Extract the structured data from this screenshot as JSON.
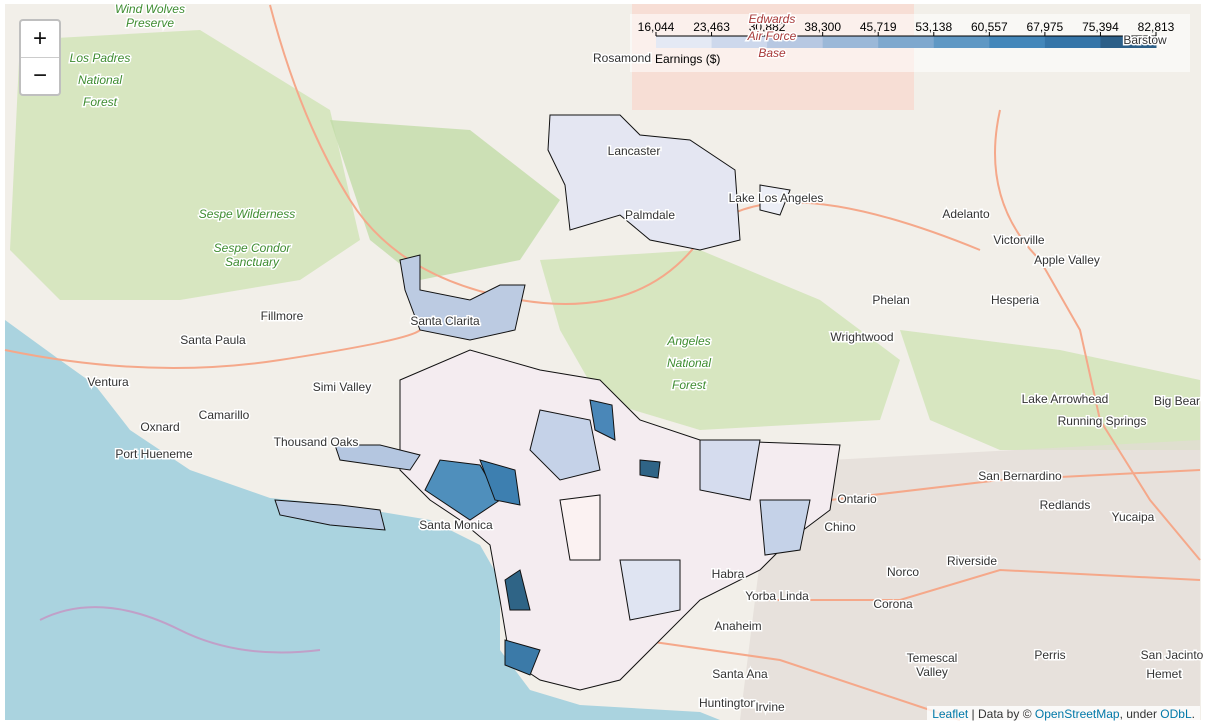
{
  "zoom": {
    "in": "+",
    "out": "−"
  },
  "legend": {
    "title": "Earnings ($)",
    "colors": [
      "#e4e9f4",
      "#cdd8ec",
      "#b7c8e2",
      "#9bb8d8",
      "#7ea8ce",
      "#5f98c4",
      "#4387ba",
      "#3575a8",
      "#2c5f88"
    ],
    "ticks": [
      {
        "value": 16044,
        "label": "16,044"
      },
      {
        "value": 23463,
        "label": "23,463"
      },
      {
        "value": 30882,
        "label": "30,882"
      },
      {
        "value": 38300,
        "label": "38,300"
      },
      {
        "value": 45719,
        "label": "45,719"
      },
      {
        "value": 53138,
        "label": "53,138"
      },
      {
        "value": 60557,
        "label": "60,557"
      },
      {
        "value": 67975,
        "label": "67,975"
      },
      {
        "value": 75394,
        "label": "75,394"
      },
      {
        "value": 82813,
        "label": "82,813"
      }
    ]
  },
  "places": [
    [
      "Wind Wolves",
      "Preserve"
    ],
    [
      "Los Padres",
      "National",
      "Forest"
    ],
    [
      "Sespe Wilderness"
    ],
    [
      "Sespe Condor",
      "Sanctuary"
    ],
    [
      "Fillmore"
    ],
    [
      "Santa Paula"
    ],
    [
      "Ventura"
    ],
    [
      "Oxnard"
    ],
    [
      "Camarillo"
    ],
    [
      "Port Hueneme"
    ],
    [
      "Simi Valley"
    ],
    [
      "Thousand Oaks"
    ],
    [
      "Santa Monica"
    ],
    [
      "Santa Clarita"
    ],
    [
      "Lancaster"
    ],
    [
      "Palmdale"
    ],
    [
      "Lake Los Angeles"
    ],
    [
      "Rosamond"
    ],
    [
      "Edwards",
      "Air Force",
      "Base"
    ],
    [
      "Adelanto"
    ],
    [
      "Victorville"
    ],
    [
      "Apple Valley"
    ],
    [
      "Phelan"
    ],
    [
      "Hesperia"
    ],
    [
      "Wrightwood"
    ],
    [
      "Angeles",
      "National",
      "Forest"
    ],
    [
      "Lake Arrowhead"
    ],
    [
      "Running Springs"
    ],
    [
      "Big Bear"
    ],
    [
      "San Bernardino"
    ],
    [
      "Redlands"
    ],
    [
      "Yucaipa"
    ],
    [
      "Ontario"
    ],
    [
      "Chino"
    ],
    [
      "Riverside"
    ],
    [
      "Norco"
    ],
    [
      "Corona"
    ],
    [
      "Habra"
    ],
    [
      "Yorba Linda"
    ],
    [
      "Anaheim"
    ],
    [
      "Temescal",
      "Valley"
    ],
    [
      "Perris"
    ],
    [
      "Santa Ana"
    ],
    [
      "Huntington"
    ],
    [
      "Irvine"
    ],
    [
      "Hemet"
    ],
    [
      "San Jacinto"
    ],
    [
      "Barstow"
    ]
  ],
  "attribution": {
    "leaflet": "Leaflet",
    "sep": " | Data by © ",
    "osm": "OpenStreetMap",
    "under": ", under ",
    "odbl": "ODbL",
    "end": "."
  }
}
